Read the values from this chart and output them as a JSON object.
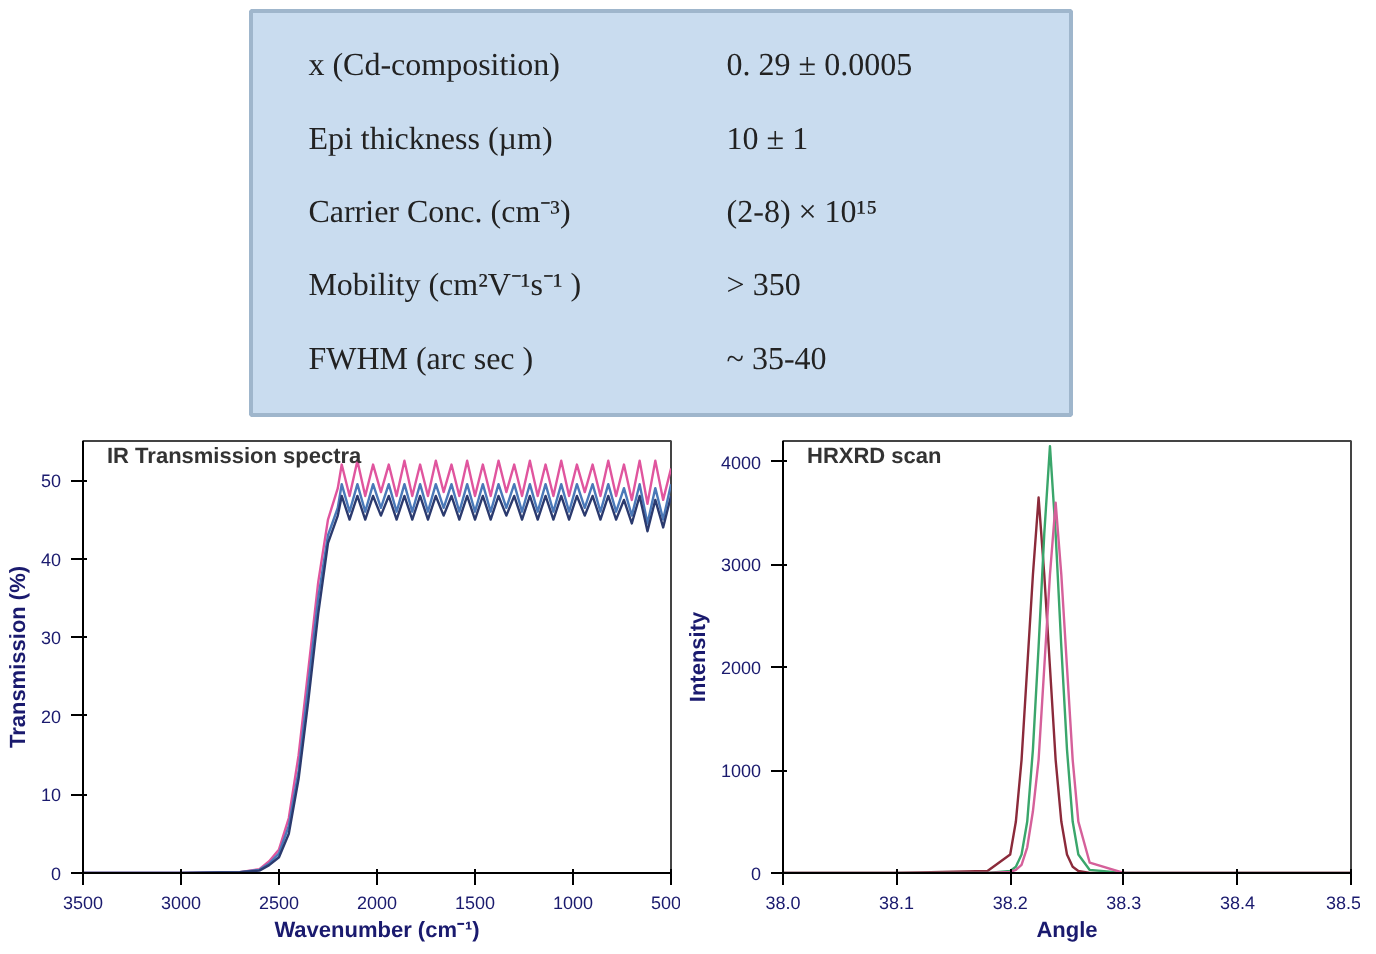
{
  "chart_data": [
    {
      "type": "other",
      "annotations": [
        "x (Cd-composition)",
        "0. 29 ± 0.0005",
        "Epi thickness (µm)",
        "10 ± 1",
        "Carrier Conc. (cm⁻³)",
        "(2-8) × 10¹⁵",
        "Mobility (cm²V⁻¹s⁻¹ )",
        "> 350",
        "FWHM (arc sec )",
        "~ 35-40"
      ]
    },
    {
      "type": "line",
      "title": "IR Transmission spectra",
      "xlabel": "Wavenumber (cm⁻¹)",
      "ylabel": "Transmission (%)",
      "xlim": [
        3500,
        500
      ],
      "ylim": [
        0,
        55
      ],
      "xticks": [
        3500,
        3000,
        2500,
        2000,
        1500,
        1000,
        500
      ],
      "yticks": [
        0,
        10,
        20,
        30,
        40,
        50
      ],
      "grid": false,
      "x": [
        3500,
        3000,
        2700,
        2600,
        2550,
        2500,
        2450,
        2400,
        2350,
        2300,
        2250,
        2200,
        2180,
        2140,
        2100,
        2060,
        2020,
        1980,
        1940,
        1900,
        1860,
        1820,
        1780,
        1740,
        1700,
        1660,
        1620,
        1580,
        1540,
        1500,
        1460,
        1420,
        1380,
        1340,
        1300,
        1260,
        1220,
        1180,
        1140,
        1100,
        1060,
        1020,
        980,
        940,
        900,
        860,
        820,
        780,
        740,
        700,
        660,
        620,
        580,
        540,
        500
      ],
      "series": [
        {
          "color": "#e0559e",
          "values": [
            0,
            0,
            0.1,
            0.5,
            1.5,
            3,
            7,
            15,
            26,
            37,
            45,
            49,
            52,
            48,
            52.5,
            48,
            52,
            48.5,
            52,
            48,
            52.5,
            48,
            52,
            48,
            52.5,
            48.5,
            52,
            48,
            52.5,
            48,
            52,
            48,
            52.5,
            48.5,
            52,
            48,
            52.5,
            48,
            52,
            48,
            52.5,
            48,
            52,
            48.5,
            52,
            48,
            52.5,
            48,
            52,
            47.5,
            52.5,
            47,
            52.5,
            47.5,
            51.5
          ]
        },
        {
          "color": "#4a78b8",
          "values": [
            0,
            0,
            0.1,
            0.4,
            1.2,
            2.5,
            6,
            13,
            24,
            35,
            43,
            46.5,
            49.5,
            46,
            49.5,
            46,
            49.5,
            46.5,
            49.5,
            46,
            49.5,
            46,
            49.5,
            46,
            49.5,
            46.5,
            49.5,
            46,
            49.5,
            46,
            49.5,
            46,
            49.5,
            46.5,
            49.5,
            46,
            49.5,
            46,
            49.5,
            46,
            49.5,
            46,
            49.5,
            46.5,
            49.5,
            46,
            49.5,
            46,
            49,
            45.5,
            49.5,
            44.5,
            49,
            45,
            49.5
          ]
        },
        {
          "color": "#2b3a6e",
          "values": [
            0,
            0,
            0.1,
            0.3,
            1,
            2,
            5,
            12,
            22,
            33,
            42,
            45.5,
            48,
            45,
            48,
            45,
            48,
            45.5,
            48,
            45,
            48,
            45,
            48,
            45,
            48,
            45.5,
            48,
            45,
            48,
            45,
            48,
            45,
            48,
            45.5,
            48,
            45,
            48,
            45,
            48,
            45,
            48,
            45,
            48,
            45.5,
            48,
            45,
            48,
            45,
            47.5,
            44.5,
            48,
            43.5,
            47.5,
            44,
            48
          ]
        }
      ]
    },
    {
      "type": "line",
      "title": "HRXRD scan",
      "xlabel": "Angle",
      "ylabel": "Intensity",
      "xlim": [
        38.0,
        38.5
      ],
      "ylim": [
        0,
        4200
      ],
      "xticks": [
        {
          "value": 38.0,
          "label": "38.0"
        },
        38.1,
        38.2,
        38.3,
        38.4,
        {
          "value": 38.5,
          "label": "38.5"
        }
      ],
      "yticks": [
        0,
        1000,
        2000,
        3000,
        4000
      ],
      "grid": false,
      "x": [
        38.0,
        38.1,
        38.18,
        38.2,
        38.205,
        38.21,
        38.215,
        38.22,
        38.225,
        38.23,
        38.235,
        38.24,
        38.245,
        38.25,
        38.255,
        38.26,
        38.27,
        38.3,
        38.4,
        38.5
      ],
      "series": [
        {
          "color": "#8b2a3a",
          "values": [
            0,
            0,
            20,
            180,
            500,
            1100,
            2000,
            2900,
            3650,
            2900,
            2000,
            1100,
            500,
            180,
            60,
            20,
            0,
            0,
            0,
            0
          ]
        },
        {
          "color": "#3aa66b",
          "values": [
            0,
            0,
            0,
            20,
            60,
            180,
            500,
            1200,
            2200,
            3300,
            4150,
            3300,
            2200,
            1200,
            500,
            180,
            30,
            0,
            0,
            0
          ]
        },
        {
          "color": "#d5609a",
          "values": [
            0,
            0,
            0,
            10,
            30,
            80,
            250,
            600,
            1100,
            2000,
            2900,
            3600,
            2900,
            2000,
            1100,
            500,
            100,
            0,
            0,
            0
          ]
        }
      ]
    }
  ]
}
